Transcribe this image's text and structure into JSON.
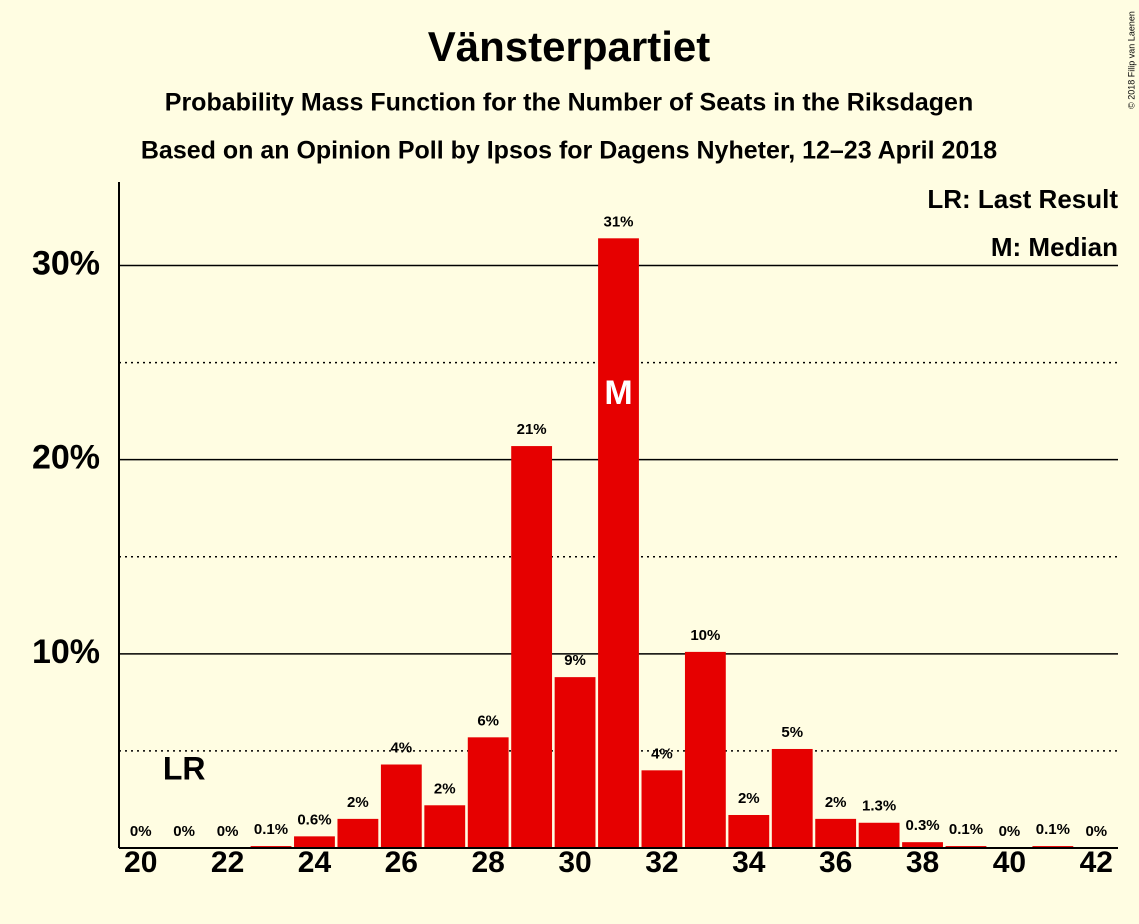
{
  "chart_data": {
    "type": "bar",
    "title": "Vänsterpartiet",
    "subtitle": "Probability Mass Function for the Number of Seats in the Riksdagen",
    "subtitle2": "Based on an Opinion Poll by Ipsos for Dagens Nyheter, 12–23 April 2018",
    "copyright": "© 2018 Filip van Laenen",
    "legend": [
      "LR: Last Result",
      "M: Median"
    ],
    "legend_position": "upper right",
    "last_result": {
      "label": "LR",
      "x": 21
    },
    "median": {
      "label": "M",
      "x": 31
    },
    "color": "#e60000",
    "x": [
      20,
      21,
      22,
      23,
      24,
      25,
      26,
      27,
      28,
      29,
      30,
      31,
      32,
      33,
      34,
      35,
      36,
      37,
      38,
      39,
      40,
      41,
      42
    ],
    "values": [
      0,
      0,
      0,
      0.1,
      0.6,
      1.5,
      4.3,
      2.2,
      5.7,
      20.7,
      8.8,
      31.4,
      4.0,
      10.1,
      1.7,
      5.1,
      1.5,
      1.3,
      0.3,
      0.1,
      0,
      0.1,
      0
    ],
    "value_labels": [
      "0%",
      "0%",
      "0%",
      "0.1%",
      "0.6%",
      "2%",
      "4%",
      "2%",
      "6%",
      "21%",
      "9%",
      "31%",
      "4%",
      "10%",
      "2%",
      "5%",
      "2%",
      "1.3%",
      "0.3%",
      "0.1%",
      "0%",
      "0.1%",
      "0%"
    ],
    "xlim": [
      19.5,
      42.5
    ],
    "xticks": [
      20,
      22,
      24,
      26,
      28,
      30,
      32,
      34,
      36,
      38,
      40,
      42
    ],
    "ylim": [
      0,
      34.3
    ],
    "yticks": [
      {
        "value": 10,
        "label": "10%"
      },
      {
        "value": 20,
        "label": "20%"
      },
      {
        "value": 30,
        "label": "30%"
      }
    ],
    "minor_yticks": [
      5,
      15,
      25
    ],
    "grid": true
  }
}
